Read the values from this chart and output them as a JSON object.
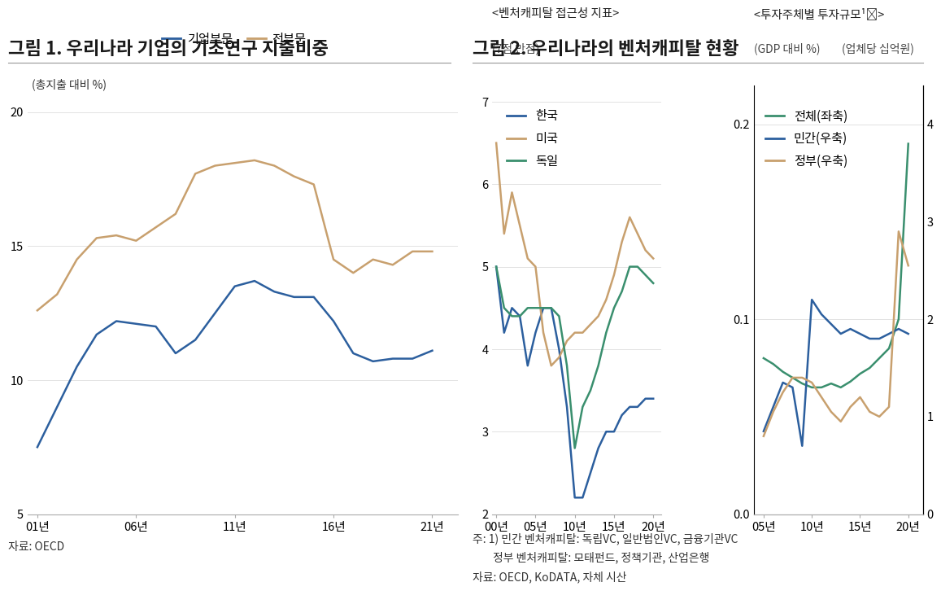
{
  "fig1": {
    "title": "그림 1. 우리나라 기업의 기초연구 지출비중",
    "ylabel": "(총지출 대비 %)",
    "ylim": [
      5,
      21
    ],
    "yticks": [
      5,
      10,
      15,
      20
    ],
    "xticks": [
      2001,
      2006,
      2011,
      2016,
      2021
    ],
    "xticklabels": [
      "01년",
      "06년",
      "11년",
      "16년",
      "21년"
    ],
    "series": {
      "기업부문": {
        "color": "#2c5f9e",
        "x": [
          2001,
          2002,
          2003,
          2004,
          2005,
          2006,
          2007,
          2008,
          2009,
          2010,
          2011,
          2012,
          2013,
          2014,
          2015,
          2016,
          2017,
          2018,
          2019,
          2020,
          2021
        ],
        "y": [
          7.5,
          9.0,
          10.5,
          11.7,
          12.2,
          12.1,
          12.0,
          11.0,
          11.5,
          12.5,
          13.5,
          13.7,
          13.3,
          13.1,
          13.1,
          12.2,
          11.0,
          10.7,
          10.8,
          10.8,
          11.1
        ]
      },
      "전부문": {
        "color": "#c8a06e",
        "x": [
          2001,
          2002,
          2003,
          2004,
          2005,
          2006,
          2007,
          2008,
          2009,
          2010,
          2011,
          2012,
          2013,
          2014,
          2015,
          2016,
          2017,
          2018,
          2019,
          2020,
          2021
        ],
        "y": [
          12.6,
          13.2,
          14.5,
          15.3,
          15.4,
          15.2,
          15.7,
          16.2,
          17.7,
          18.0,
          18.1,
          18.2,
          18.0,
          17.6,
          17.3,
          14.5,
          14.0,
          14.5,
          14.3,
          14.8,
          14.8
        ]
      }
    }
  },
  "fig2a": {
    "title": "<벤처캐피탈 접근성 지표>",
    "subtitle": "(7점 만점)",
    "ylim": [
      2,
      7.2
    ],
    "yticks": [
      2,
      3,
      4,
      5,
      6,
      7
    ],
    "xticks": [
      2000,
      2005,
      2010,
      2015,
      2020
    ],
    "xticklabels": [
      "00년",
      "05년",
      "10년",
      "15년",
      "20년"
    ],
    "xlim": [
      1999.5,
      2021.0
    ],
    "series": {
      "한국": {
        "color": "#2c5f9e",
        "x": [
          2000,
          2001,
          2002,
          2003,
          2004,
          2005,
          2006,
          2007,
          2008,
          2009,
          2010,
          2011,
          2012,
          2013,
          2014,
          2015,
          2016,
          2017,
          2018,
          2019,
          2020
        ],
        "y": [
          5.0,
          4.2,
          4.5,
          4.4,
          3.8,
          4.2,
          4.5,
          4.5,
          4.0,
          3.3,
          2.2,
          2.2,
          2.5,
          2.8,
          3.0,
          3.0,
          3.2,
          3.3,
          3.3,
          3.4,
          3.4
        ]
      },
      "미국": {
        "color": "#c8a06e",
        "x": [
          2000,
          2001,
          2002,
          2003,
          2004,
          2005,
          2006,
          2007,
          2008,
          2009,
          2010,
          2011,
          2012,
          2013,
          2014,
          2015,
          2016,
          2017,
          2018,
          2019,
          2020
        ],
        "y": [
          6.5,
          5.4,
          5.9,
          5.5,
          5.1,
          5.0,
          4.2,
          3.8,
          3.9,
          4.1,
          4.2,
          4.2,
          4.3,
          4.4,
          4.6,
          4.9,
          5.3,
          5.6,
          5.4,
          5.2,
          5.1
        ]
      },
      "독일": {
        "color": "#3a8f6e",
        "x": [
          2000,
          2001,
          2002,
          2003,
          2004,
          2005,
          2006,
          2007,
          2008,
          2009,
          2010,
          2011,
          2012,
          2013,
          2014,
          2015,
          2016,
          2017,
          2018,
          2019,
          2020
        ],
        "y": [
          5.0,
          4.5,
          4.4,
          4.4,
          4.5,
          4.5,
          4.5,
          4.5,
          4.4,
          3.8,
          2.8,
          3.3,
          3.5,
          3.8,
          4.2,
          4.5,
          4.7,
          5.0,
          5.0,
          4.9,
          4.8
        ]
      }
    }
  },
  "fig2b": {
    "title": "<투자주체별 투자규모¹⁾>",
    "subtitle_left": "(GDP 대비 %)",
    "subtitle_right": "(업체당 십억원)",
    "ylim_left": [
      0.0,
      0.22
    ],
    "ylim_right": [
      0,
      4.4
    ],
    "yticks_left": [
      0.0,
      0.1,
      0.2
    ],
    "yticks_left_labels": [
      "0.0",
      "0.1",
      "0.2"
    ],
    "yticks_right": [
      0,
      1,
      2,
      3,
      4
    ],
    "xticks": [
      2005,
      2010,
      2015,
      2020
    ],
    "xticklabels": [
      "05년",
      "10년",
      "15년",
      "20년"
    ],
    "xlim": [
      2004.0,
      2021.5
    ],
    "series": {
      "전체(좌축)": {
        "color": "#3a8f6e",
        "axis": "left",
        "x": [
          2005,
          2006,
          2007,
          2008,
          2009,
          2010,
          2011,
          2012,
          2013,
          2014,
          2015,
          2016,
          2017,
          2018,
          2019,
          2020
        ],
        "y": [
          0.08,
          0.077,
          0.073,
          0.07,
          0.067,
          0.065,
          0.065,
          0.067,
          0.065,
          0.068,
          0.072,
          0.075,
          0.08,
          0.085,
          0.1,
          0.19
        ]
      },
      "민간(우축)": {
        "color": "#2c5f9e",
        "axis": "right",
        "x": [
          2005,
          2006,
          2007,
          2008,
          2009,
          2010,
          2011,
          2012,
          2013,
          2014,
          2015,
          2016,
          2017,
          2018,
          2019,
          2020
        ],
        "y": [
          0.85,
          1.1,
          1.35,
          1.3,
          0.7,
          2.2,
          2.05,
          1.95,
          1.85,
          1.9,
          1.85,
          1.8,
          1.8,
          1.85,
          1.9,
          1.85
        ]
      },
      "정부(우축)": {
        "color": "#c8a06e",
        "axis": "right",
        "x": [
          2005,
          2006,
          2007,
          2008,
          2009,
          2010,
          2011,
          2012,
          2013,
          2014,
          2015,
          2016,
          2017,
          2018,
          2019,
          2020
        ],
        "y": [
          0.8,
          1.05,
          1.25,
          1.4,
          1.4,
          1.35,
          1.2,
          1.05,
          0.95,
          1.1,
          1.2,
          1.05,
          1.0,
          1.1,
          2.9,
          2.55
        ]
      }
    }
  },
  "fig1_note": "자료: OECD",
  "fig2_note1": "주: 1) 민간 벤처캐피탈: 독립VC, 일반법인VC, 금융기관VC",
  "fig2_note2": "        정부 벤처캐피탈: 모태펀드, 정책기관, 산업은행",
  "fig2_note3": "자료: OECD, KoDATA, 자체 시산",
  "background_color": "#ffffff",
  "title_color": "#1a1a1a",
  "title_fontsize": 16,
  "label_fontsize": 11,
  "tick_fontsize": 10.5,
  "note_fontsize": 10
}
